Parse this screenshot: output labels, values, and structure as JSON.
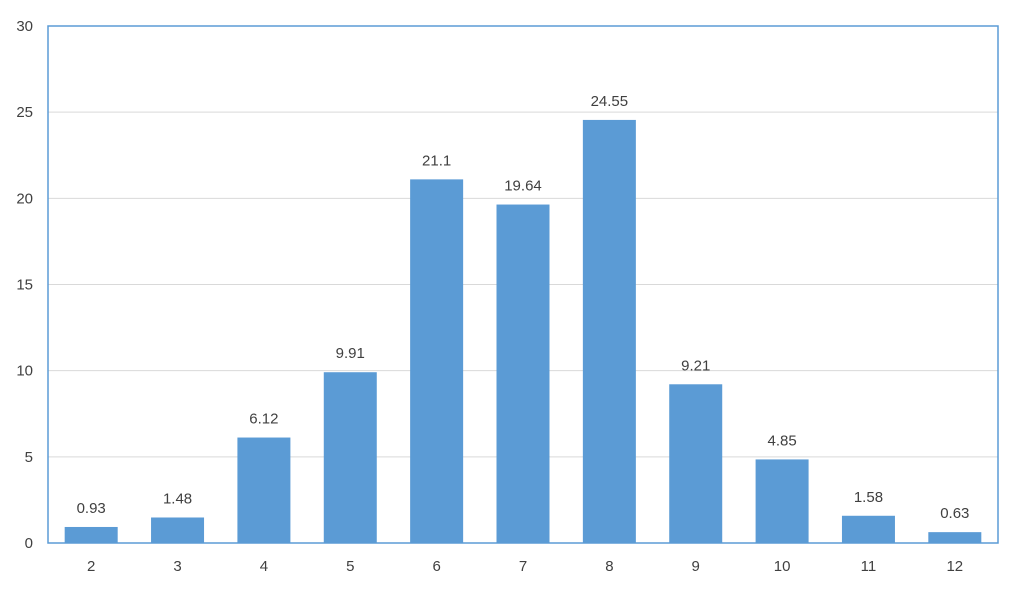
{
  "chart_data": {
    "type": "bar",
    "categories": [
      "2",
      "3",
      "4",
      "5",
      "6",
      "7",
      "8",
      "9",
      "10",
      "11",
      "12"
    ],
    "values": [
      0.93,
      1.48,
      6.12,
      9.91,
      21.1,
      19.64,
      24.55,
      9.21,
      4.85,
      1.58,
      0.63
    ],
    "data_labels": [
      "0.93",
      "1.48",
      "6.12",
      "9.91",
      "21.1",
      "19.64",
      "24.55",
      "9.21",
      "4.85",
      "1.58",
      "0.63"
    ],
    "title": "",
    "xlabel": "",
    "ylabel": "",
    "ylim": [
      0,
      30
    ],
    "yticks": [
      0,
      5,
      10,
      15,
      20,
      25,
      30
    ],
    "ytick_labels": [
      "0",
      "5",
      "10",
      "15",
      "20",
      "25",
      "30"
    ],
    "grid": true,
    "legend": "none",
    "colors": {
      "bar": "#5b9bd5",
      "grid": "#d9d9d9",
      "frame": "#5b9bd5",
      "text": "#404040"
    }
  }
}
